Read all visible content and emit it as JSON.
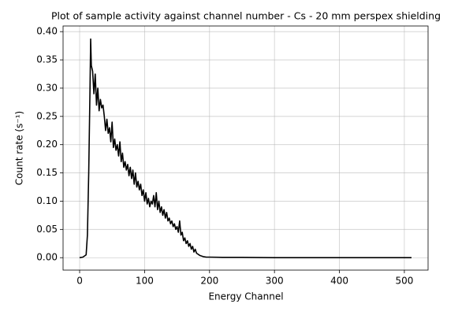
{
  "chart_data": {
    "type": "line",
    "title": "Plot of sample activity against channel number - Cs - 20 mm perspex shielding",
    "xlabel": "Energy Channel",
    "ylabel": "Count rate (s⁻¹)",
    "x": [
      0,
      5,
      10,
      12,
      14,
      16,
      17,
      18,
      20,
      22,
      24,
      26,
      28,
      30,
      32,
      34,
      36,
      38,
      40,
      42,
      44,
      46,
      48,
      50,
      52,
      54,
      56,
      58,
      60,
      62,
      64,
      66,
      68,
      70,
      72,
      74,
      76,
      78,
      80,
      82,
      84,
      86,
      88,
      90,
      92,
      94,
      96,
      98,
      100,
      102,
      104,
      106,
      108,
      110,
      112,
      114,
      116,
      118,
      120,
      122,
      124,
      126,
      128,
      130,
      132,
      134,
      136,
      138,
      140,
      142,
      144,
      146,
      148,
      150,
      152,
      154,
      156,
      158,
      160,
      162,
      164,
      166,
      168,
      170,
      172,
      174,
      176,
      178,
      180,
      185,
      190,
      195,
      200,
      220,
      250,
      300,
      400,
      511
    ],
    "series": [
      {
        "name": "Count rate",
        "color": "#000000",
        "values": [
          0,
          0.001,
          0.005,
          0.04,
          0.15,
          0.3,
          0.387,
          0.34,
          0.33,
          0.29,
          0.325,
          0.27,
          0.3,
          0.26,
          0.28,
          0.265,
          0.27,
          0.25,
          0.225,
          0.245,
          0.22,
          0.23,
          0.205,
          0.24,
          0.195,
          0.21,
          0.19,
          0.2,
          0.18,
          0.205,
          0.17,
          0.185,
          0.16,
          0.17,
          0.155,
          0.165,
          0.145,
          0.16,
          0.14,
          0.155,
          0.13,
          0.15,
          0.125,
          0.135,
          0.12,
          0.13,
          0.11,
          0.12,
          0.1,
          0.115,
          0.095,
          0.105,
          0.09,
          0.1,
          0.095,
          0.11,
          0.09,
          0.115,
          0.085,
          0.1,
          0.08,
          0.09,
          0.075,
          0.085,
          0.07,
          0.08,
          0.065,
          0.07,
          0.06,
          0.065,
          0.055,
          0.06,
          0.05,
          0.055,
          0.045,
          0.065,
          0.04,
          0.045,
          0.03,
          0.035,
          0.025,
          0.03,
          0.02,
          0.025,
          0.015,
          0.02,
          0.01,
          0.015,
          0.008,
          0.004,
          0.002,
          0.001,
          0.001,
          0.0005,
          0.0005,
          0,
          0,
          0
        ]
      }
    ],
    "xlim": [
      -25.5,
      536.5
    ],
    "ylim": [
      -0.022,
      0.41
    ],
    "xticks": [
      0,
      100,
      200,
      300,
      400,
      500
    ],
    "yticks": [
      {
        "value": 0,
        "label": "0.00"
      },
      {
        "value": 0.05,
        "label": "0.05"
      },
      {
        "value": 0.1,
        "label": "0.10"
      },
      {
        "value": 0.15,
        "label": "0.15"
      },
      {
        "value": 0.2,
        "label": "0.20"
      },
      {
        "value": 0.25,
        "label": "0.25"
      },
      {
        "value": 0.3,
        "label": "0.30"
      },
      {
        "value": 0.35,
        "label": "0.35"
      },
      {
        "value": 0.4,
        "label": "0.40"
      }
    ],
    "grid": true
  }
}
